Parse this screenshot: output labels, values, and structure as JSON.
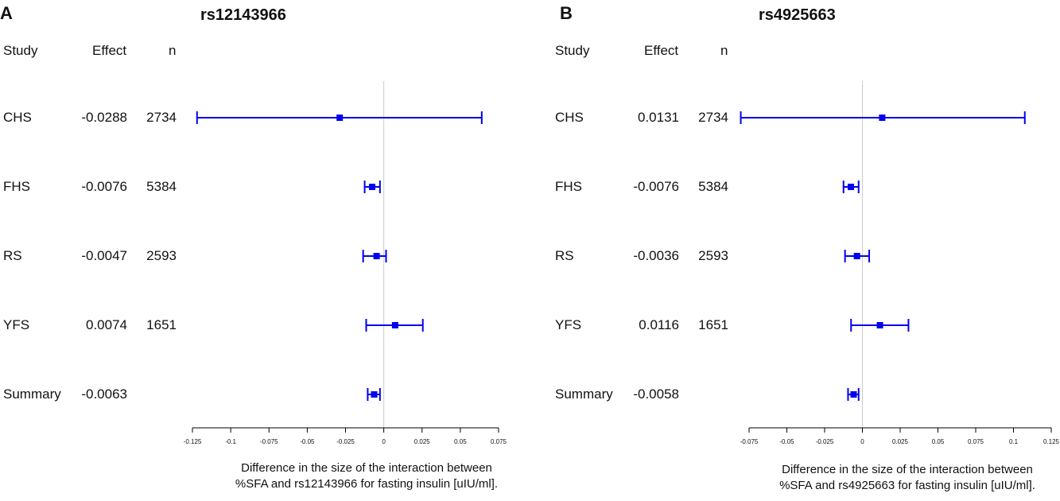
{
  "chart_data": [
    {
      "type": "forest",
      "panel_label": "A",
      "title": "rs12143966",
      "columns": {
        "study": "Study",
        "effect": "Effect",
        "n": "n"
      },
      "xlim": [
        -0.125,
        0.075
      ],
      "xticks": [
        "-0.125",
        "-0.1",
        "-0.075",
        "-0.05",
        "-0.025",
        "0",
        "0.025",
        "0.05",
        "0.075"
      ],
      "xtick_values": [
        -0.125,
        -0.1,
        -0.075,
        -0.05,
        -0.025,
        0,
        0.025,
        0.05,
        0.075
      ],
      "xlabel_lines": [
        "Difference in the size of the interaction between",
        "%SFA and rs12143966 for fasting insulin [uIU/ml]."
      ],
      "rows": [
        {
          "study": "CHS",
          "effect": "-0.0288",
          "n": "2734",
          "est": -0.0288,
          "lo": -0.122,
          "hi": 0.064
        },
        {
          "study": "FHS",
          "effect": "-0.0076",
          "n": "5384",
          "est": -0.0076,
          "lo": -0.0125,
          "hi": -0.0025
        },
        {
          "study": "RS",
          "effect": "-0.0047",
          "n": "2593",
          "est": -0.0047,
          "lo": -0.0135,
          "hi": 0.0015
        },
        {
          "study": "YFS",
          "effect": "0.0074",
          "n": "1651",
          "est": 0.0074,
          "lo": -0.0115,
          "hi": 0.0255
        },
        {
          "study": "Summary",
          "effect": "-0.0063",
          "n": "",
          "est": -0.0063,
          "lo": -0.0105,
          "hi": -0.0025
        }
      ]
    },
    {
      "type": "forest",
      "panel_label": "B",
      "title": "rs4925663",
      "columns": {
        "study": "Study",
        "effect": "Effect",
        "n": "n"
      },
      "xlim": [
        -0.075,
        0.125
      ],
      "xticks": [
        "-0.075",
        "-0.05",
        "-0.025",
        "0",
        "0.025",
        "0.05",
        "0.075",
        "0.1",
        "0.125"
      ],
      "xtick_values": [
        -0.075,
        -0.05,
        -0.025,
        0,
        0.025,
        0.05,
        0.075,
        0.1,
        0.125
      ],
      "xlabel_lines": [
        "Difference in the size of the interaction between",
        "%SFA and rs4925663 for fasting insulin [uIU/ml]."
      ],
      "rows": [
        {
          "study": "CHS",
          "effect": "0.0131",
          "n": "2734",
          "est": 0.0131,
          "lo": -0.0805,
          "hi": 0.1075
        },
        {
          "study": "FHS",
          "effect": "-0.0076",
          "n": "5384",
          "est": -0.0076,
          "lo": -0.0125,
          "hi": -0.0025
        },
        {
          "study": "RS",
          "effect": "-0.0036",
          "n": "2593",
          "est": -0.0036,
          "lo": -0.0115,
          "hi": 0.0045
        },
        {
          "study": "YFS",
          "effect": "0.0116",
          "n": "1651",
          "est": 0.0116,
          "lo": -0.0075,
          "hi": 0.0305
        },
        {
          "study": "Summary",
          "effect": "-0.0058",
          "n": "",
          "est": -0.0058,
          "lo": -0.0095,
          "hi": -0.0025
        }
      ]
    }
  ],
  "colors": {
    "series": "#0000ee",
    "zero_line": "#cccccc",
    "axis": "#000000"
  }
}
